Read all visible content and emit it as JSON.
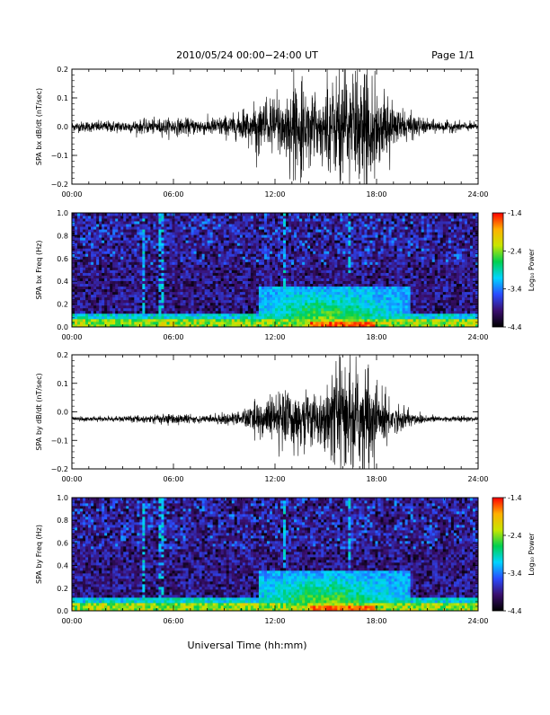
{
  "header": {
    "title": "2010/05/24  00:00−24:00 UT",
    "page": "Page 1/1"
  },
  "footer": {
    "xlabel": "Universal Time (hh:mm)"
  },
  "colorbar": {
    "label": "Log₁₀ Power",
    "ticks": [
      "-1.4",
      "-2.4",
      "-3.4",
      "-4.4"
    ],
    "gradient": [
      "#000000",
      "#3a0f6e",
      "#2a4cff",
      "#00d4ff",
      "#00d050",
      "#c8e600",
      "#ffb000",
      "#ff0000"
    ]
  },
  "chart_data": [
    {
      "type": "line",
      "ylabel": "SPA bx dB/dt (nT/sec)",
      "x_range_hours": [
        0,
        24
      ],
      "xticks": [
        "00:00",
        "06:00",
        "12:00",
        "18:00",
        "24:00"
      ],
      "ylim": [
        -0.2,
        0.2
      ],
      "yticks": [
        "0.2",
        "0.1",
        "0.0",
        "−0.1",
        "−0.2"
      ],
      "baseline": 0.0,
      "amplitude_envelope": [
        {
          "t": 0,
          "a": 0.015
        },
        {
          "t": 4,
          "a": 0.02
        },
        {
          "t": 5.5,
          "a": 0.025
        },
        {
          "t": 8,
          "a": 0.025
        },
        {
          "t": 10,
          "a": 0.04
        },
        {
          "t": 11.5,
          "a": 0.08
        },
        {
          "t": 13,
          "a": 0.12
        },
        {
          "t": 14.5,
          "a": 0.09
        },
        {
          "t": 16,
          "a": 0.17
        },
        {
          "t": 17.5,
          "a": 0.15
        },
        {
          "t": 19,
          "a": 0.06
        },
        {
          "t": 21,
          "a": 0.02
        },
        {
          "t": 24,
          "a": 0.012
        }
      ]
    },
    {
      "type": "heatmap",
      "ylabel": "SPA bx Freq (Hz)",
      "x_range_hours": [
        0,
        24
      ],
      "xticks": [
        "00:00",
        "06:00",
        "12:00",
        "18:00",
        "24:00"
      ],
      "ylim": [
        0.0,
        1.0
      ],
      "yticks": [
        "1.0",
        "0.8",
        "0.6",
        "0.4",
        "0.2",
        "0.0"
      ],
      "z_range_log10_power": [
        -4.4,
        -1.4
      ]
    },
    {
      "type": "line",
      "ylabel": "SPA by dB/dt (nT/sec)",
      "x_range_hours": [
        0,
        24
      ],
      "xticks": [
        "00:00",
        "06:00",
        "12:00",
        "18:00",
        "24:00"
      ],
      "ylim": [
        -0.2,
        0.2
      ],
      "yticks": [
        "0.2",
        "0.1",
        "0.0",
        "−0.1",
        "−0.2"
      ],
      "baseline": -0.025,
      "amplitude_envelope": [
        {
          "t": 0,
          "a": 0.006
        },
        {
          "t": 4,
          "a": 0.01
        },
        {
          "t": 5.5,
          "a": 0.018
        },
        {
          "t": 8,
          "a": 0.01
        },
        {
          "t": 10,
          "a": 0.025
        },
        {
          "t": 11.5,
          "a": 0.06
        },
        {
          "t": 12.5,
          "a": 0.09
        },
        {
          "t": 14.5,
          "a": 0.07
        },
        {
          "t": 16,
          "a": 0.15
        },
        {
          "t": 17.5,
          "a": 0.14
        },
        {
          "t": 19,
          "a": 0.04
        },
        {
          "t": 21,
          "a": 0.012
        },
        {
          "t": 24,
          "a": 0.006
        }
      ]
    },
    {
      "type": "heatmap",
      "ylabel": "SPA by Freq (Hz)",
      "x_range_hours": [
        0,
        24
      ],
      "xticks": [
        "00:00",
        "06:00",
        "12:00",
        "18:00",
        "24:00"
      ],
      "ylim": [
        0.0,
        1.0
      ],
      "yticks": [
        "1.0",
        "0.8",
        "0.6",
        "0.4",
        "0.2",
        "0.0"
      ],
      "z_range_log10_power": [
        -4.4,
        -1.4
      ]
    }
  ]
}
